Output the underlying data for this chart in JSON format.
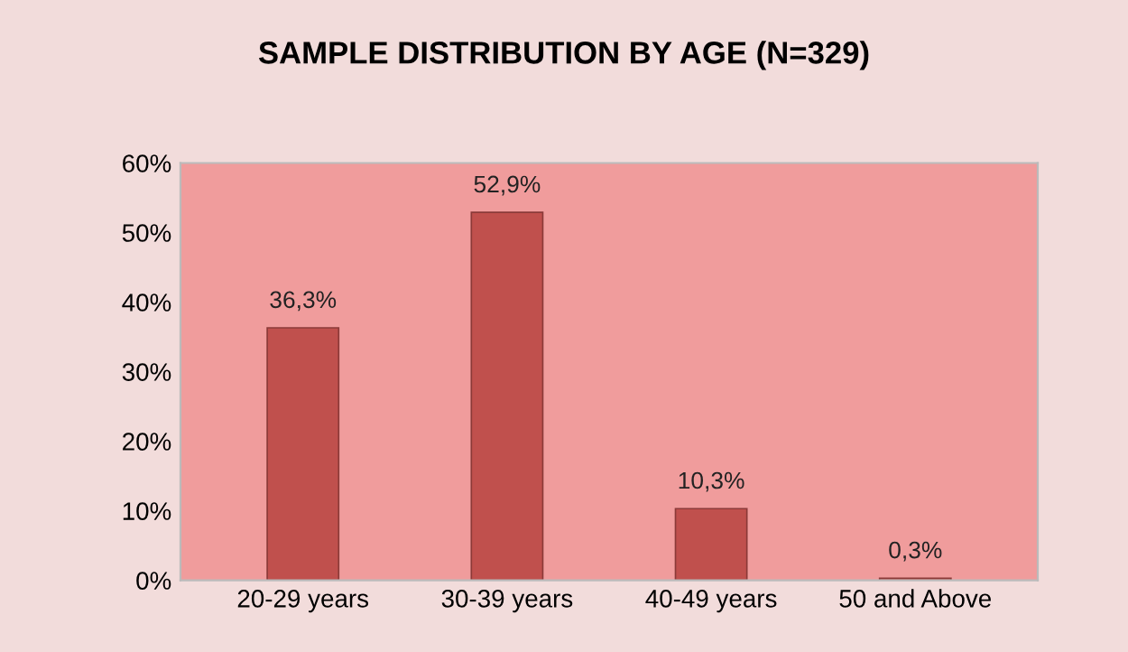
{
  "chart_data": {
    "type": "bar",
    "title": "SAMPLE DISTRIBUTION BY AGE (N=329)",
    "categories": [
      "20-29 years",
      "30-39 years",
      "40-49 years",
      "50 and Above"
    ],
    "values": [
      36.3,
      52.9,
      10.3,
      0.3
    ],
    "value_labels": [
      "36,3%",
      "52,9%",
      "10,3%",
      "0,3%"
    ],
    "color": "#c0504d",
    "ylim": [
      0,
      60
    ],
    "yticks": [
      {
        "value": 0,
        "label": "0%"
      },
      {
        "value": 10,
        "label": "10%"
      },
      {
        "value": 20,
        "label": "20%"
      },
      {
        "value": 30,
        "label": "30%"
      },
      {
        "value": 40,
        "label": "40%"
      },
      {
        "value": 50,
        "label": "50%"
      },
      {
        "value": 60,
        "label": "60%"
      }
    ],
    "grid": false,
    "legend": false
  }
}
